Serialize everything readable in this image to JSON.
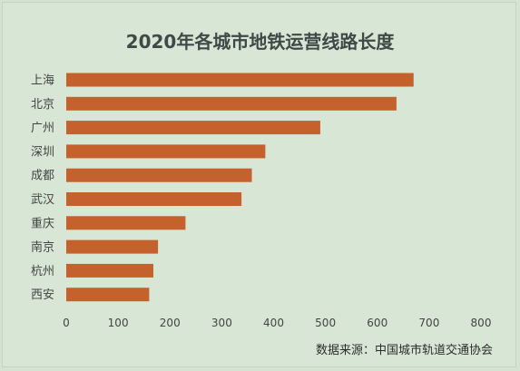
{
  "chart_data": {
    "type": "bar",
    "orientation": "horizontal",
    "title": "2020年各城市地铁运营线路长度",
    "categories": [
      "上海",
      "北京",
      "广州",
      "深圳",
      "成都",
      "武汉",
      "重庆",
      "南京",
      "杭州",
      "西安"
    ],
    "values": [
      670,
      637,
      490,
      384,
      358,
      338,
      230,
      177,
      168,
      160
    ],
    "xlim": [
      0,
      800
    ],
    "xticks": [
      "0",
      "100",
      "200",
      "300",
      "400",
      "500",
      "600",
      "700",
      "800"
    ],
    "grid": false,
    "legend": "none",
    "bar_color": "#c4612c",
    "source": "数据来源：中国城市轨道交通协会"
  }
}
